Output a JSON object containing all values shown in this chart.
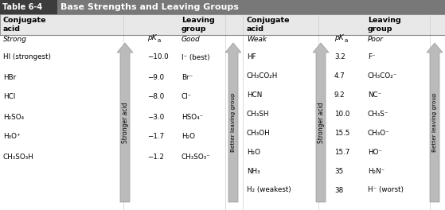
{
  "title_box": "Table 6-4",
  "title_text": "Base Strengths and Leaving Groups",
  "left_strong": "Strong",
  "left_good": "Good",
  "right_weak": "Weak",
  "right_poor": "Poor",
  "left_rows": [
    [
      "HI (strongest)",
      "−9.0",
      "−8.0",
      "−3.0",
      "−1.7",
      "−1.2"
    ],
    [
      "−10.0",
      "−9.0",
      "−8.0",
      "−3.0",
      "−1.7",
      "−1.2"
    ]
  ],
  "left_acids": [
    "HI (strongest)",
    "HBr",
    "HCl",
    "H₂SO₄",
    "H₃O⁺",
    "CH₃SO₃H"
  ],
  "left_pka": [
    "−10.0",
    "−9.0",
    "−8.0",
    "−3.0",
    "−1.7",
    "−1.2"
  ],
  "left_lg": [
    "I⁻ (best)",
    "Br⁻",
    "Cl⁻",
    "HSO₄⁻",
    "H₂O",
    "CH₃SO₃⁻"
  ],
  "right_acids": [
    "HF",
    "CH₃CO₂H",
    "HCN",
    "CH₃SH",
    "CH₃OH",
    "H₂O",
    "NH₃",
    "H₂ (weakest)"
  ],
  "right_pka": [
    "3.2",
    "4.7",
    "9.2",
    "10.0",
    "15.5",
    "15.7",
    "35",
    "38"
  ],
  "right_lg": [
    "F⁻",
    "CH₃CO₂⁻",
    "NC⁻",
    "CH₃S⁻",
    "CH₃O⁻",
    "HO⁻",
    "H₂N⁻",
    "H⁻ (worst)"
  ],
  "arrow_color_face": "#bbbbbb",
  "arrow_color_edge": "#999999",
  "title_dark": "#3d3d3d",
  "title_mid": "#606060",
  "header_bg": "#e0e0e0",
  "border_col": "#888888"
}
